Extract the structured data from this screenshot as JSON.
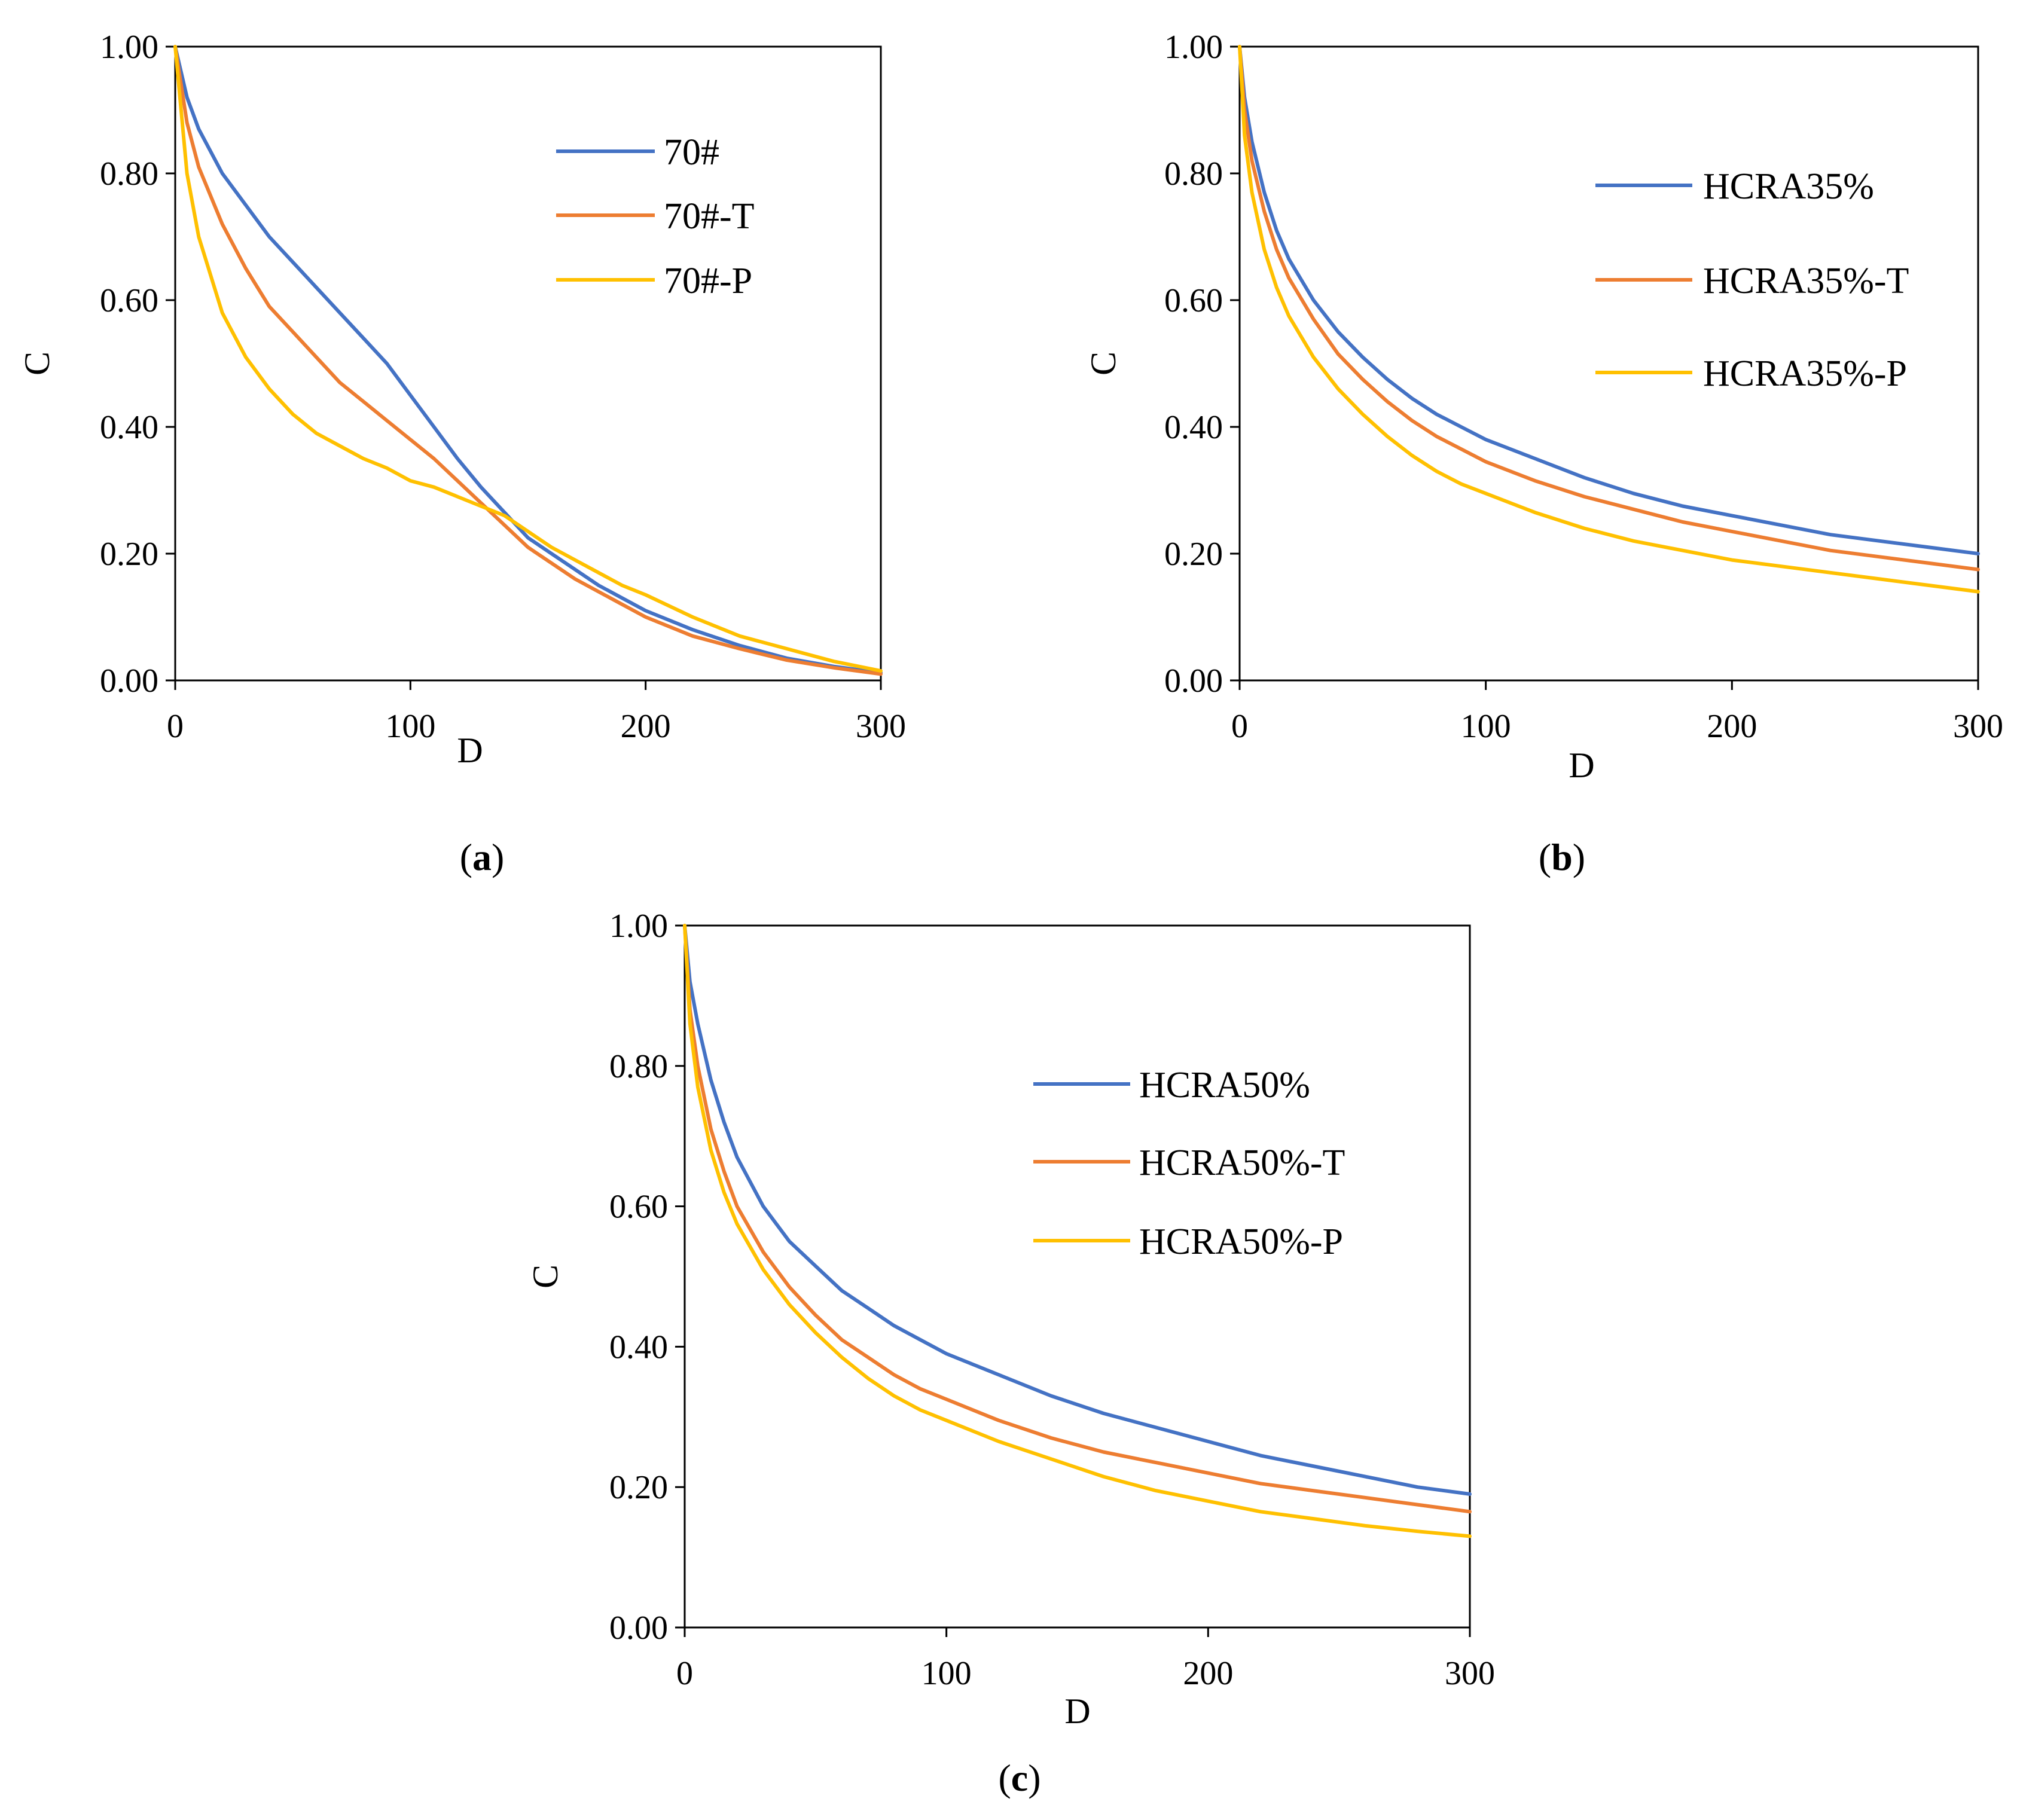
{
  "chart_data": [
    {
      "panel": "a",
      "type": "line",
      "xlabel": "D",
      "ylabel": "C",
      "xlim": [
        0,
        300
      ],
      "ylim": [
        0,
        1
      ],
      "x_ticks": [
        "0",
        "100",
        "200",
        "300"
      ],
      "y_ticks": [
        "0.00",
        "0.20",
        "0.40",
        "0.60",
        "0.80",
        "1.00"
      ],
      "grid": false,
      "legend_position": "top-right",
      "caption": {
        "open": "(",
        "letter": "a",
        "close": ")"
      },
      "series": [
        {
          "name": "70#",
          "color": "#4472C4",
          "x": [
            0,
            5,
            10,
            20,
            30,
            40,
            50,
            60,
            70,
            80,
            90,
            100,
            110,
            120,
            130,
            140,
            150,
            160,
            170,
            180,
            190,
            200,
            220,
            240,
            260,
            280,
            300
          ],
          "y": [
            1.0,
            0.92,
            0.87,
            0.8,
            0.75,
            0.7,
            0.66,
            0.62,
            0.58,
            0.54,
            0.5,
            0.45,
            0.4,
            0.35,
            0.305,
            0.265,
            0.225,
            0.2,
            0.175,
            0.15,
            0.13,
            0.11,
            0.08,
            0.055,
            0.035,
            0.022,
            0.012
          ]
        },
        {
          "name": "70#-T",
          "color": "#ED7D31",
          "x": [
            0,
            5,
            10,
            20,
            30,
            40,
            50,
            60,
            70,
            80,
            90,
            100,
            110,
            120,
            130,
            140,
            150,
            160,
            170,
            180,
            190,
            200,
            220,
            240,
            260,
            280,
            300
          ],
          "y": [
            1.0,
            0.88,
            0.81,
            0.72,
            0.65,
            0.59,
            0.55,
            0.51,
            0.47,
            0.44,
            0.41,
            0.38,
            0.35,
            0.315,
            0.28,
            0.245,
            0.21,
            0.185,
            0.16,
            0.14,
            0.12,
            0.1,
            0.07,
            0.05,
            0.032,
            0.02,
            0.01
          ]
        },
        {
          "name": "70#-P",
          "color": "#FFC000",
          "x": [
            0,
            5,
            10,
            20,
            30,
            40,
            50,
            60,
            70,
            80,
            90,
            100,
            110,
            120,
            130,
            140,
            150,
            160,
            170,
            180,
            190,
            200,
            220,
            240,
            260,
            280,
            300
          ],
          "y": [
            1.0,
            0.8,
            0.7,
            0.58,
            0.51,
            0.46,
            0.42,
            0.39,
            0.37,
            0.35,
            0.335,
            0.315,
            0.305,
            0.29,
            0.275,
            0.26,
            0.235,
            0.21,
            0.19,
            0.17,
            0.15,
            0.135,
            0.1,
            0.07,
            0.05,
            0.03,
            0.015
          ]
        }
      ]
    },
    {
      "panel": "b",
      "type": "line",
      "xlabel": "D",
      "ylabel": "C",
      "xlim": [
        0,
        300
      ],
      "ylim": [
        0,
        1
      ],
      "x_ticks": [
        "0",
        "100",
        "200",
        "300"
      ],
      "y_ticks": [
        "0.00",
        "0.20",
        "0.40",
        "0.60",
        "0.80",
        "1.00"
      ],
      "grid": false,
      "legend_position": "top-right",
      "caption": {
        "open": "(",
        "letter": "b",
        "close": ")"
      },
      "series": [
        {
          "name": "HCRA35%",
          "color": "#4472C4",
          "x": [
            0,
            2,
            5,
            10,
            15,
            20,
            30,
            40,
            50,
            60,
            70,
            80,
            90,
            100,
            120,
            140,
            160,
            180,
            200,
            220,
            240,
            260,
            280,
            300
          ],
          "y": [
            1.0,
            0.92,
            0.85,
            0.77,
            0.71,
            0.665,
            0.6,
            0.55,
            0.51,
            0.475,
            0.445,
            0.42,
            0.4,
            0.38,
            0.35,
            0.32,
            0.295,
            0.275,
            0.26,
            0.245,
            0.23,
            0.22,
            0.21,
            0.2
          ]
        },
        {
          "name": "HCRA35%-T",
          "color": "#ED7D31",
          "x": [
            0,
            2,
            5,
            10,
            15,
            20,
            30,
            40,
            50,
            60,
            70,
            80,
            90,
            100,
            120,
            140,
            160,
            180,
            200,
            220,
            240,
            260,
            280,
            300
          ],
          "y": [
            1.0,
            0.9,
            0.82,
            0.74,
            0.68,
            0.635,
            0.57,
            0.515,
            0.475,
            0.44,
            0.41,
            0.385,
            0.365,
            0.345,
            0.315,
            0.29,
            0.27,
            0.25,
            0.235,
            0.22,
            0.205,
            0.195,
            0.185,
            0.175
          ]
        },
        {
          "name": "HCRA35%-P",
          "color": "#FFC000",
          "x": [
            0,
            2,
            5,
            10,
            15,
            20,
            30,
            40,
            50,
            60,
            70,
            80,
            90,
            100,
            120,
            140,
            160,
            180,
            200,
            220,
            240,
            260,
            280,
            300
          ],
          "y": [
            1.0,
            0.86,
            0.77,
            0.68,
            0.62,
            0.575,
            0.51,
            0.46,
            0.42,
            0.385,
            0.355,
            0.33,
            0.31,
            0.295,
            0.265,
            0.24,
            0.22,
            0.205,
            0.19,
            0.18,
            0.17,
            0.16,
            0.15,
            0.14
          ]
        }
      ]
    },
    {
      "panel": "c",
      "type": "line",
      "xlabel": "D",
      "ylabel": "C",
      "xlim": [
        0,
        300
      ],
      "ylim": [
        0,
        1
      ],
      "x_ticks": [
        "0",
        "100",
        "200",
        "300"
      ],
      "y_ticks": [
        "0.00",
        "0.20",
        "0.40",
        "0.60",
        "0.80",
        "1.00"
      ],
      "grid": false,
      "legend_position": "top-right",
      "caption": {
        "open": "(",
        "letter": "c",
        "close": ")"
      },
      "series": [
        {
          "name": "HCRA50%",
          "color": "#4472C4",
          "x": [
            0,
            2,
            5,
            10,
            15,
            20,
            30,
            40,
            50,
            60,
            70,
            80,
            90,
            100,
            120,
            140,
            160,
            180,
            200,
            220,
            240,
            260,
            280,
            300
          ],
          "y": [
            1.0,
            0.92,
            0.86,
            0.78,
            0.72,
            0.67,
            0.6,
            0.55,
            0.515,
            0.48,
            0.455,
            0.43,
            0.41,
            0.39,
            0.36,
            0.33,
            0.305,
            0.285,
            0.265,
            0.245,
            0.23,
            0.215,
            0.2,
            0.19
          ]
        },
        {
          "name": "HCRA50%-T",
          "color": "#ED7D31",
          "x": [
            0,
            2,
            5,
            10,
            15,
            20,
            30,
            40,
            50,
            60,
            70,
            80,
            90,
            100,
            120,
            140,
            160,
            180,
            200,
            220,
            240,
            260,
            280,
            300
          ],
          "y": [
            1.0,
            0.88,
            0.8,
            0.71,
            0.65,
            0.6,
            0.535,
            0.485,
            0.445,
            0.41,
            0.385,
            0.36,
            0.34,
            0.325,
            0.295,
            0.27,
            0.25,
            0.235,
            0.22,
            0.205,
            0.195,
            0.185,
            0.175,
            0.165
          ]
        },
        {
          "name": "HCRA50%-P",
          "color": "#FFC000",
          "x": [
            0,
            2,
            5,
            10,
            15,
            20,
            30,
            40,
            50,
            60,
            70,
            80,
            90,
            100,
            120,
            140,
            160,
            180,
            200,
            220,
            240,
            260,
            280,
            300
          ],
          "y": [
            1.0,
            0.86,
            0.77,
            0.68,
            0.62,
            0.575,
            0.51,
            0.46,
            0.42,
            0.385,
            0.355,
            0.33,
            0.31,
            0.295,
            0.265,
            0.24,
            0.215,
            0.195,
            0.18,
            0.165,
            0.155,
            0.145,
            0.137,
            0.13
          ]
        }
      ]
    }
  ]
}
